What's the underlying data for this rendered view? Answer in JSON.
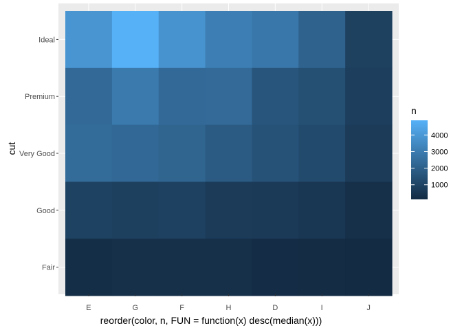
{
  "chart_data": {
    "type": "heatmap",
    "xlabel": "reorder(color, n, FUN = function(x) desc(median(x)))",
    "ylabel": "cut",
    "x_categories": [
      "E",
      "G",
      "F",
      "H",
      "D",
      "I",
      "J"
    ],
    "y_categories": [
      "Ideal",
      "Premium",
      "Very Good",
      "Good",
      "Fair"
    ],
    "values": [
      [
        3903,
        4884,
        3826,
        3115,
        2834,
        2093,
        896
      ],
      [
        2337,
        2924,
        2331,
        2360,
        1603,
        1428,
        808
      ],
      [
        2400,
        2299,
        2164,
        1824,
        1513,
        1204,
        678
      ],
      [
        933,
        871,
        909,
        702,
        662,
        522,
        307
      ],
      [
        224,
        314,
        312,
        303,
        163,
        175,
        119
      ]
    ],
    "legend": {
      "title": "n",
      "ticks": [
        1000,
        2000,
        3000,
        4000
      ],
      "range": [
        119,
        4884
      ],
      "low_color": "#132B43",
      "high_color": "#56B1F7",
      "placement": "right"
    },
    "grid": true,
    "panel_background": "#EBEBEB",
    "gridline_color": "#FFFFFF"
  }
}
